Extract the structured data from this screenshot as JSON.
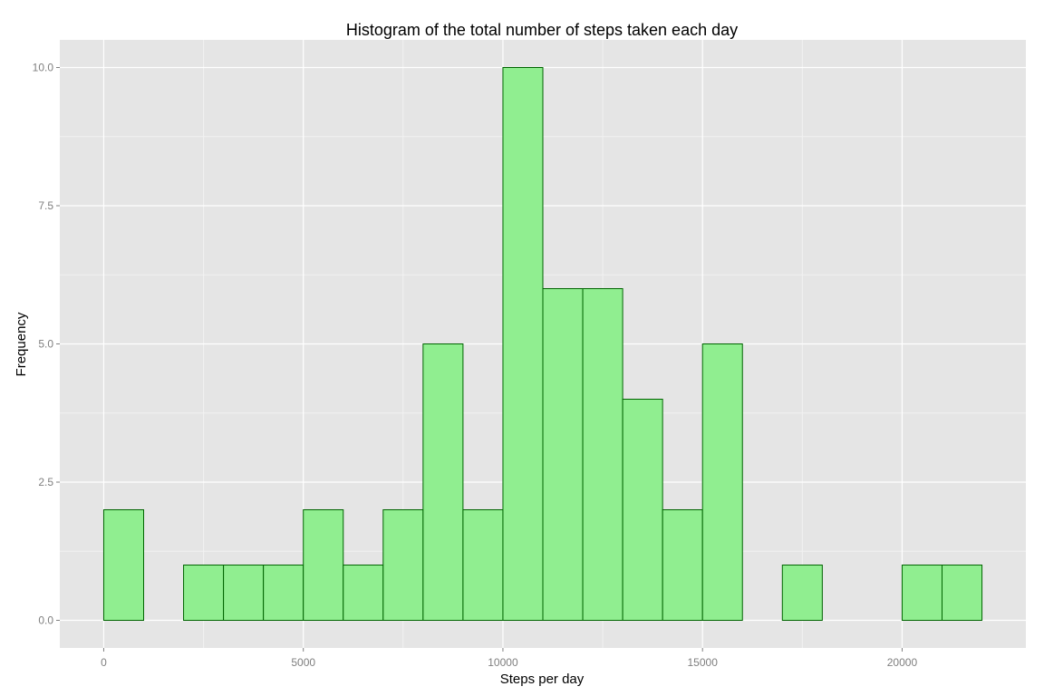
{
  "chart_data": {
    "type": "bar",
    "title": "Histogram of the total number of steps taken each day",
    "xlabel": "Steps per day",
    "ylabel": "Frequency",
    "bin_width": 1000,
    "bins": [
      {
        "start": 0,
        "end": 1000,
        "count": 2
      },
      {
        "start": 1000,
        "end": 2000,
        "count": 0
      },
      {
        "start": 2000,
        "end": 3000,
        "count": 1
      },
      {
        "start": 3000,
        "end": 4000,
        "count": 1
      },
      {
        "start": 4000,
        "end": 5000,
        "count": 1
      },
      {
        "start": 5000,
        "end": 6000,
        "count": 2
      },
      {
        "start": 6000,
        "end": 7000,
        "count": 1
      },
      {
        "start": 7000,
        "end": 8000,
        "count": 2
      },
      {
        "start": 8000,
        "end": 9000,
        "count": 5
      },
      {
        "start": 9000,
        "end": 10000,
        "count": 2
      },
      {
        "start": 10000,
        "end": 11000,
        "count": 10
      },
      {
        "start": 11000,
        "end": 12000,
        "count": 6
      },
      {
        "start": 12000,
        "end": 13000,
        "count": 6
      },
      {
        "start": 13000,
        "end": 14000,
        "count": 4
      },
      {
        "start": 14000,
        "end": 15000,
        "count": 2
      },
      {
        "start": 15000,
        "end": 16000,
        "count": 5
      },
      {
        "start": 16000,
        "end": 17000,
        "count": 0
      },
      {
        "start": 17000,
        "end": 18000,
        "count": 1
      },
      {
        "start": 18000,
        "end": 19000,
        "count": 0
      },
      {
        "start": 19000,
        "end": 20000,
        "count": 0
      },
      {
        "start": 20000,
        "end": 21000,
        "count": 1
      },
      {
        "start": 21000,
        "end": 22000,
        "count": 1
      }
    ],
    "xlim": [
      -1100,
      23100
    ],
    "ylim": [
      -0.5,
      10.5
    ],
    "x_ticks": [
      0,
      5000,
      10000,
      15000,
      20000
    ],
    "x_tick_labels": [
      "0",
      "5000",
      "10000",
      "15000",
      "20000"
    ],
    "y_ticks": [
      0,
      2.5,
      5,
      7.5,
      10
    ],
    "y_tick_labels": [
      "0.0",
      "2.5",
      "5.0",
      "7.5",
      "10.0"
    ],
    "grid": true,
    "legend": "none",
    "colors": {
      "bar_fill": "#90ee90",
      "bar_stroke": "#006400",
      "panel_background": "#e5e5e5",
      "grid_major": "#ffffff",
      "grid_minor": "#f2f2f2"
    }
  }
}
